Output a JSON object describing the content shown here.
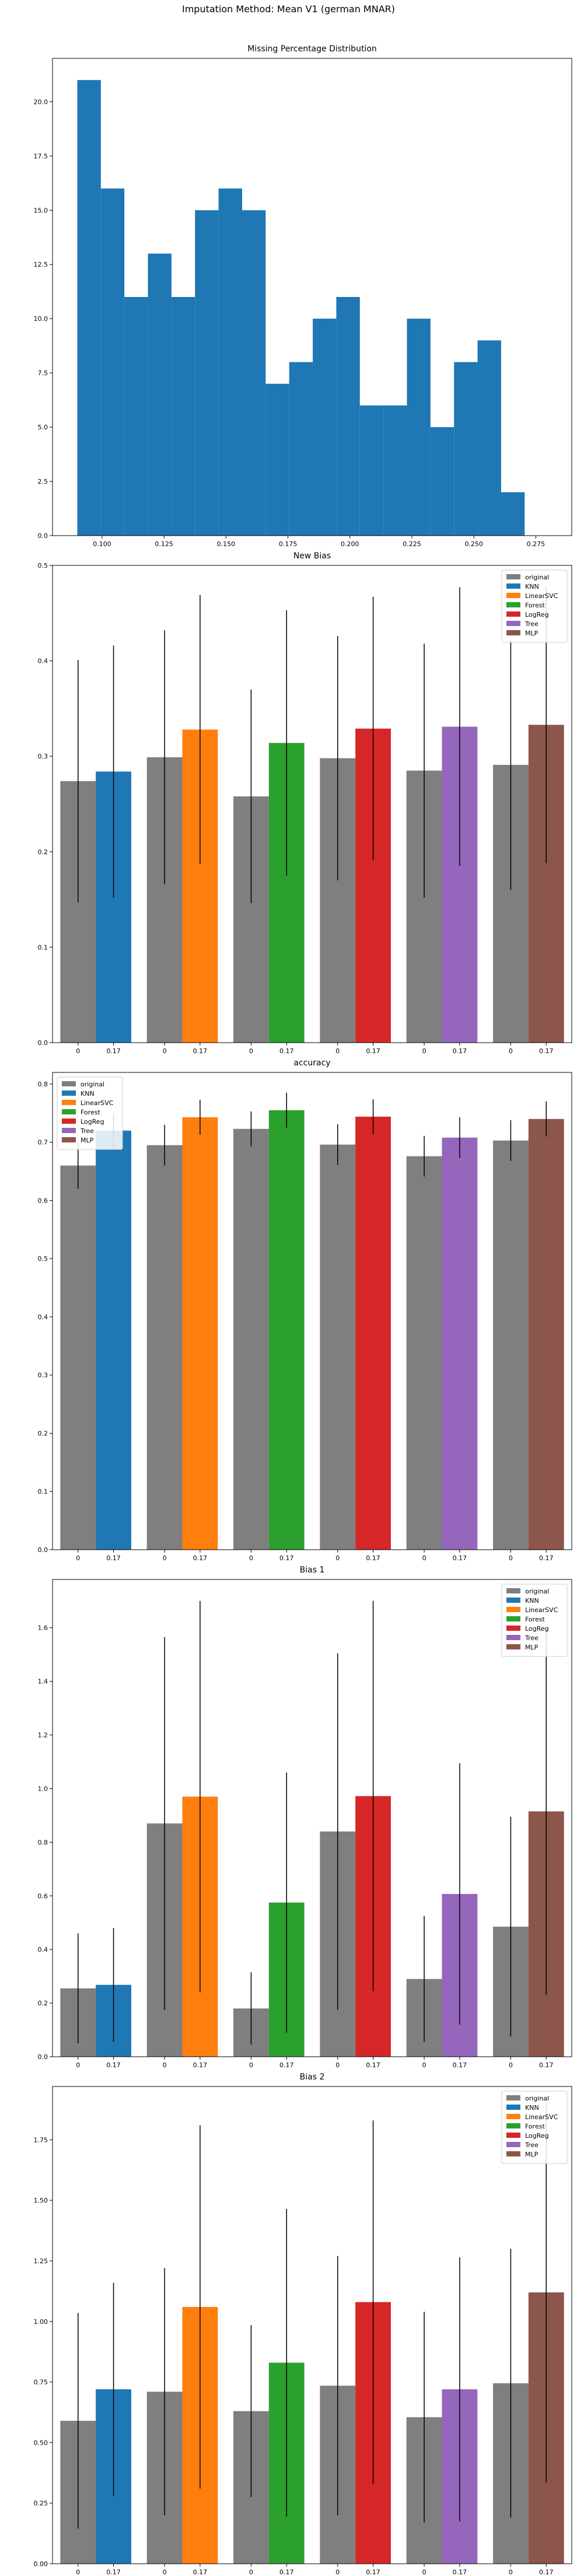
{
  "figure": {
    "suptitle": "Imputation Method: Mean V1 (german MNAR)"
  },
  "chart_data": [
    {
      "id": "missing",
      "type": "bar",
      "subtype": "histogram",
      "title": "Missing Percentage Distribution",
      "xlabel": "",
      "ylabel": "",
      "color": "#1f77b4",
      "bin_start": 0.09,
      "bin_width": 0.0095,
      "counts": [
        21,
        16,
        11,
        13,
        11,
        15,
        16,
        15,
        7,
        8,
        10,
        11,
        6,
        6,
        10,
        5,
        8,
        9,
        2
      ],
      "xlim": [
        0.08,
        0.2895
      ],
      "ylim": [
        0,
        22
      ],
      "xticks": [
        0.1,
        0.125,
        0.15,
        0.175,
        0.2,
        0.225,
        0.25,
        0.275
      ],
      "xtick_labels": [
        "0.100",
        "0.125",
        "0.150",
        "0.175",
        "0.200",
        "0.225",
        "0.250",
        "0.275"
      ],
      "yticks": [
        0,
        2.5,
        5,
        7.5,
        10,
        12.5,
        15,
        17.5,
        20
      ],
      "ytick_labels": [
        "0.0",
        "2.5",
        "5.0",
        "7.5",
        "10.0",
        "12.5",
        "15.0",
        "17.5",
        "20.0"
      ]
    },
    {
      "id": "new_bias",
      "type": "bar",
      "title": "New Bias",
      "xlabel": "",
      "ylabel": "",
      "ylim": [
        0,
        0.5
      ],
      "yticks": [
        0,
        0.1,
        0.2,
        0.3,
        0.4,
        0.5
      ],
      "ytick_labels": [
        "0.0",
        "0.1",
        "0.2",
        "0.3",
        "0.4",
        "0.5"
      ],
      "legend": "top-right",
      "categories": [
        "0",
        "0.17"
      ],
      "series": [
        {
          "name": "KNN",
          "color": "#1f77b4",
          "original": 0.274,
          "original_err": 0.127,
          "value": 0.284,
          "value_err": 0.132
        },
        {
          "name": "LinearSVC",
          "color": "#ff7f0e",
          "original": 0.299,
          "original_err": 0.133,
          "value": 0.328,
          "value_err": 0.141
        },
        {
          "name": "Forest",
          "color": "#2ca02c",
          "original": 0.258,
          "original_err": 0.112,
          "value": 0.314,
          "value_err": 0.139
        },
        {
          "name": "LogReg",
          "color": "#d62728",
          "original": 0.298,
          "original_err": 0.128,
          "value": 0.329,
          "value_err": 0.138
        },
        {
          "name": "Tree",
          "color": "#9467bd",
          "original": 0.285,
          "original_err": 0.133,
          "value": 0.331,
          "value_err": 0.146
        },
        {
          "name": "MLP",
          "color": "#8c564b",
          "original": 0.291,
          "original_err": 0.131,
          "value": 0.333,
          "value_err": 0.145
        }
      ],
      "original_label": "original",
      "original_color": "#7f7f7f"
    },
    {
      "id": "accuracy",
      "type": "bar",
      "title": "accuracy",
      "xlabel": "",
      "ylabel": "",
      "ylim": [
        0,
        0.82
      ],
      "yticks": [
        0,
        0.1,
        0.2,
        0.3,
        0.4,
        0.5,
        0.6,
        0.7,
        0.8
      ],
      "ytick_labels": [
        "0.0",
        "0.1",
        "0.2",
        "0.3",
        "0.4",
        "0.5",
        "0.6",
        "0.7",
        "0.8"
      ],
      "legend": "top-left",
      "categories": [
        "0",
        "0.17"
      ],
      "series": [
        {
          "name": "KNN",
          "color": "#1f77b4",
          "original": 0.66,
          "original_err": 0.04,
          "value": 0.72,
          "value_err": 0.03
        },
        {
          "name": "LinearSVC",
          "color": "#ff7f0e",
          "original": 0.695,
          "original_err": 0.035,
          "value": 0.743,
          "value_err": 0.03
        },
        {
          "name": "Forest",
          "color": "#2ca02c",
          "original": 0.723,
          "original_err": 0.03,
          "value": 0.755,
          "value_err": 0.03
        },
        {
          "name": "LogReg",
          "color": "#d62728",
          "original": 0.696,
          "original_err": 0.035,
          "value": 0.744,
          "value_err": 0.03
        },
        {
          "name": "Tree",
          "color": "#9467bd",
          "original": 0.676,
          "original_err": 0.035,
          "value": 0.708,
          "value_err": 0.035
        },
        {
          "name": "MLP",
          "color": "#8c564b",
          "original": 0.703,
          "original_err": 0.035,
          "value": 0.74,
          "value_err": 0.03
        }
      ],
      "original_label": "original",
      "original_color": "#7f7f7f"
    },
    {
      "id": "bias1",
      "type": "bar",
      "title": "Bias 1",
      "xlabel": "",
      "ylabel": "",
      "ylim": [
        0,
        1.78
      ],
      "yticks": [
        0,
        0.2,
        0.4,
        0.6,
        0.8,
        1.0,
        1.2,
        1.4,
        1.6
      ],
      "ytick_labels": [
        "0.0",
        "0.2",
        "0.4",
        "0.6",
        "0.8",
        "1.0",
        "1.2",
        "1.4",
        "1.6"
      ],
      "legend": "top-right",
      "categories": [
        "0",
        "0.17"
      ],
      "series": [
        {
          "name": "KNN",
          "color": "#1f77b4",
          "original": 0.255,
          "original_err": 0.205,
          "value": 0.268,
          "value_err": 0.212
        },
        {
          "name": "LinearSVC",
          "color": "#ff7f0e",
          "original": 0.87,
          "original_err": 0.695,
          "value": 0.97,
          "value_err": 0.73
        },
        {
          "name": "Forest",
          "color": "#2ca02c",
          "original": 0.18,
          "original_err": 0.135,
          "value": 0.575,
          "value_err": 0.485
        },
        {
          "name": "LogReg",
          "color": "#d62728",
          "original": 0.84,
          "original_err": 0.665,
          "value": 0.972,
          "value_err": 0.728
        },
        {
          "name": "Tree",
          "color": "#9467bd",
          "original": 0.29,
          "original_err": 0.235,
          "value": 0.607,
          "value_err": 0.487
        },
        {
          "name": "MLP",
          "color": "#8c564b",
          "original": 0.485,
          "original_err": 0.41,
          "value": 0.915,
          "value_err": 0.685
        }
      ],
      "original_label": "original",
      "original_color": "#7f7f7f"
    },
    {
      "id": "bias2",
      "type": "bar",
      "title": "Bias 2",
      "xlabel": "",
      "ylabel": "",
      "ylim": [
        0,
        1.97
      ],
      "yticks": [
        0,
        0.25,
        0.5,
        0.75,
        1.0,
        1.25,
        1.5,
        1.75
      ],
      "ytick_labels": [
        "0.00",
        "0.25",
        "0.50",
        "0.75",
        "1.00",
        "1.25",
        "1.50",
        "1.75"
      ],
      "legend": "top-right",
      "categories": [
        "0",
        "0.17"
      ],
      "series": [
        {
          "name": "KNN",
          "color": "#1f77b4",
          "original": 0.59,
          "original_err": 0.445,
          "value": 0.72,
          "value_err": 0.44
        },
        {
          "name": "LinearSVC",
          "color": "#ff7f0e",
          "original": 0.71,
          "original_err": 0.51,
          "value": 1.06,
          "value_err": 0.75
        },
        {
          "name": "Forest",
          "color": "#2ca02c",
          "original": 0.63,
          "original_err": 0.355,
          "value": 0.83,
          "value_err": 0.635
        },
        {
          "name": "LogReg",
          "color": "#d62728",
          "original": 0.735,
          "original_err": 0.535,
          "value": 1.08,
          "value_err": 0.75
        },
        {
          "name": "Tree",
          "color": "#9467bd",
          "original": 0.605,
          "original_err": 0.435,
          "value": 0.72,
          "value_err": 0.545
        },
        {
          "name": "MLP",
          "color": "#8c564b",
          "original": 0.745,
          "original_err": 0.555,
          "value": 1.12,
          "value_err": 0.785
        }
      ],
      "original_label": "original",
      "original_color": "#7f7f7f"
    }
  ]
}
